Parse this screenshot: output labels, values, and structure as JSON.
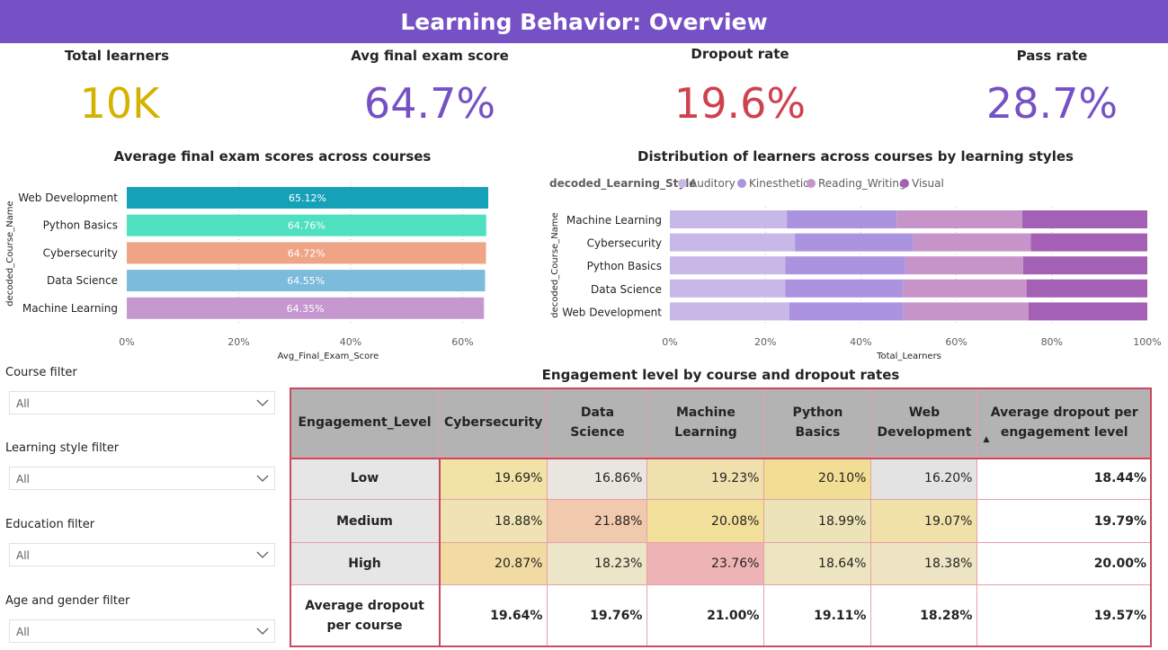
{
  "page": {
    "title": "Learning Behavior: Overview"
  },
  "kpis": [
    {
      "label": "Total learners",
      "value": "10K",
      "color": "#d4b300"
    },
    {
      "label": "Avg final exam score",
      "value": "64.7%",
      "color": "#7651c5"
    },
    {
      "label": "Dropout rate",
      "value": "19.6%",
      "color": "#d0414e"
    },
    {
      "label": "Pass rate",
      "value": "28.7%",
      "color": "#7651c5"
    }
  ],
  "bar_chart": {
    "title": "Average final exam scores across courses",
    "ylabel": "decoded_Course_Name",
    "xlabel": "Avg_Final_Exam_Score",
    "ticks": [
      "0%",
      "20%",
      "40%",
      "60%"
    ],
    "bars": [
      {
        "label": "Web Development",
        "text": "65.12%",
        "color": "#15a1b8"
      },
      {
        "label": "Python Basics",
        "text": "64.76%",
        "color": "#4fe0c0"
      },
      {
        "label": "Cybersecurity",
        "text": "64.72%",
        "color": "#efa585"
      },
      {
        "label": "Data Science",
        "text": "64.55%",
        "color": "#7dbbdc"
      },
      {
        "label": "Machine Learning",
        "text": "64.35%",
        "color": "#c598cf"
      }
    ]
  },
  "stacked_chart": {
    "title": "Distribution of learners across courses by learning styles",
    "legend_title": "decoded_Learning_Style",
    "ylabel": "decoded_Course_Name",
    "xlabel": "Total_Learners",
    "ticks": [
      "0%",
      "20%",
      "40%",
      "60%",
      "80%",
      "100%"
    ],
    "series": [
      {
        "name": "Auditory",
        "color": "#c8b8e8"
      },
      {
        "name": "Kinesthetic",
        "color": "#ab93e0"
      },
      {
        "name": "Reading_Writing",
        "color": "#c794c9"
      },
      {
        "name": "Visual",
        "color": "#a460b4"
      }
    ],
    "rows": [
      {
        "label": "Machine Learning",
        "values": [
          24.5,
          23.0,
          26.3,
          26.2
        ]
      },
      {
        "label": "Cybersecurity",
        "values": [
          26.2,
          24.8,
          24.6,
          24.4
        ]
      },
      {
        "label": "Python Basics",
        "values": [
          24.2,
          25.1,
          24.7,
          26.0
        ]
      },
      {
        "label": "Data Science",
        "values": [
          24.2,
          24.6,
          25.9,
          25.3
        ]
      },
      {
        "label": "Web Development",
        "values": [
          25.0,
          23.9,
          26.2,
          24.9
        ]
      }
    ]
  },
  "chart_data": [
    {
      "type": "bar",
      "title": "Average final exam scores across courses",
      "xlabel": "Avg_Final_Exam_Score",
      "ylabel": "decoded_Course_Name",
      "categories": [
        "Web Development",
        "Python Basics",
        "Cybersecurity",
        "Data Science",
        "Machine Learning"
      ],
      "values": [
        65.12,
        64.76,
        64.72,
        64.55,
        64.35
      ],
      "xlim": [
        0,
        65.12
      ]
    },
    {
      "type": "bar",
      "title": "Distribution of learners across courses by learning styles",
      "xlabel": "Total_Learners",
      "ylabel": "decoded_Course_Name",
      "categories": [
        "Machine Learning",
        "Cybersecurity",
        "Python Basics",
        "Data Science",
        "Web Development"
      ],
      "series": [
        {
          "name": "Auditory",
          "values": [
            24.5,
            26.2,
            24.2,
            24.2,
            25.0
          ]
        },
        {
          "name": "Kinesthetic",
          "values": [
            23.0,
            24.8,
            25.1,
            24.6,
            23.9
          ]
        },
        {
          "name": "Reading_Writing",
          "values": [
            26.3,
            24.6,
            24.7,
            25.9,
            26.2
          ]
        },
        {
          "name": "Visual",
          "values": [
            26.2,
            24.4,
            26.0,
            25.3,
            24.9
          ]
        }
      ],
      "xlim": [
        0,
        100
      ]
    }
  ],
  "filters": [
    {
      "label": "Course filter",
      "value": "All"
    },
    {
      "label": "Learning style filter",
      "value": "All"
    },
    {
      "label": "Education filter",
      "value": "All"
    },
    {
      "label": "Age and gender filter",
      "value": "All"
    }
  ],
  "matrix": {
    "title": "Engagement level by course and dropout rates",
    "headers": [
      "Engagement_Level",
      "Cybersecurity",
      "Data Science",
      "Machine Learning",
      "Python Basics",
      "Web Development",
      "Average dropout per engagement level"
    ],
    "sort_indicator": "▲",
    "rows": [
      {
        "label": "Low",
        "cells": [
          "19.69%",
          "16.86%",
          "19.23%",
          "20.10%",
          "16.20%"
        ],
        "colors": [
          "#f1e3a6",
          "#e9e6df",
          "#efe1ae",
          "#f1dd93",
          "#e3e3e3"
        ],
        "total": "18.44%"
      },
      {
        "label": "Medium",
        "cells": [
          "18.88%",
          "21.88%",
          "20.08%",
          "18.99%",
          "19.07%"
        ],
        "colors": [
          "#efe3b3",
          "#f1c9ad",
          "#f2df99",
          "#ede3b8",
          "#efe1a8"
        ],
        "total": "19.79%"
      },
      {
        "label": "High",
        "cells": [
          "20.87%",
          "18.23%",
          "23.76%",
          "18.64%",
          "18.38%"
        ],
        "colors": [
          "#f1dba2",
          "#ede5c7",
          "#eeb3b4",
          "#ede4c0",
          "#ede4c4"
        ],
        "total": "20.00%"
      }
    ],
    "total_row": {
      "label": "Average dropout per course",
      "cells": [
        "19.64%",
        "19.76%",
        "21.00%",
        "19.11%",
        "18.28%"
      ],
      "total": "19.57%"
    }
  }
}
